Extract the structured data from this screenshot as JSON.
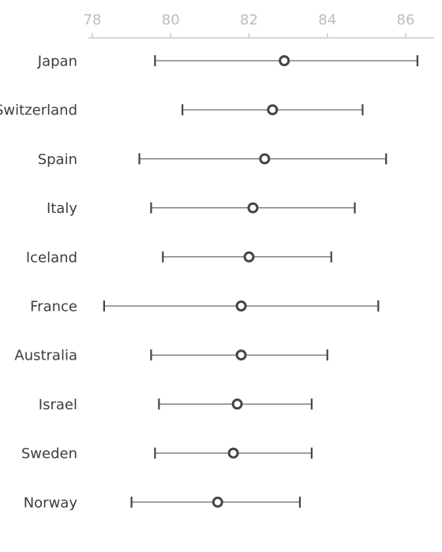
{
  "chart_data": {
    "type": "scatter",
    "orientation": "horizontal",
    "x_axis_position": "top",
    "xlim": [
      77.8,
      86.7
    ],
    "x_ticks": [
      78,
      80,
      82,
      84,
      86
    ],
    "x_tick_labels": [
      "78",
      "80",
      "82",
      "84",
      "86"
    ],
    "grid": false,
    "categories": [
      "Japan",
      "Switzerland",
      "Spain",
      "Italy",
      "Iceland",
      "France",
      "Australia",
      "Israel",
      "Sweden",
      "Norway"
    ],
    "values": [
      82.9,
      82.6,
      82.4,
      82.1,
      82.0,
      81.8,
      81.8,
      81.7,
      81.6,
      81.2
    ],
    "lower": [
      79.6,
      80.3,
      79.2,
      79.5,
      79.8,
      78.3,
      79.5,
      79.7,
      79.6,
      79.0
    ],
    "upper": [
      86.3,
      84.9,
      85.5,
      84.7,
      84.1,
      85.3,
      84.0,
      83.6,
      83.6,
      83.3
    ],
    "colors": {
      "marker": "#444444",
      "whisker": "#444444",
      "axis": "#c8c8c8",
      "tick_label": "#bdbdbd",
      "category_label": "#3d3d3d"
    }
  }
}
